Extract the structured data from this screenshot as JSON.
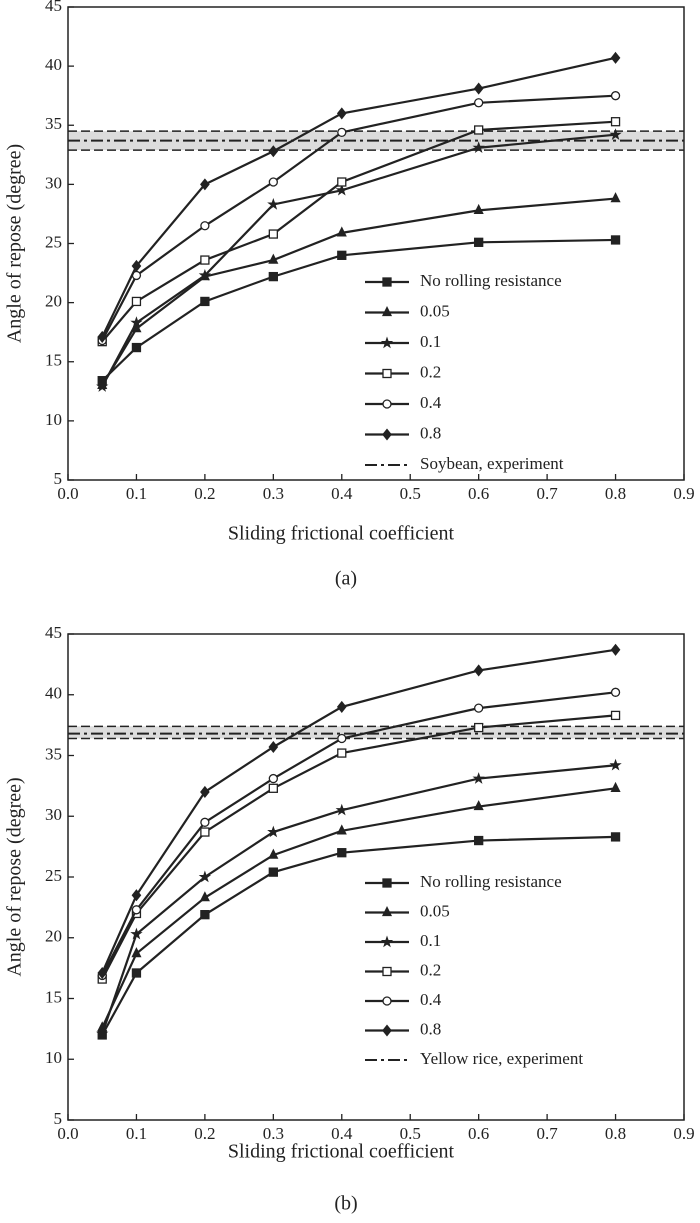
{
  "chart_data": [
    {
      "type": "line",
      "caption": "(a)",
      "xlabel": "Sliding frictional coefficient",
      "ylabel": "Angle of repose (degree)",
      "x": [
        0.05,
        0.1,
        0.2,
        0.3,
        0.4,
        0.6,
        0.8
      ],
      "xlim": [
        0,
        0.9
      ],
      "ylim": [
        5,
        45
      ],
      "xticks": [
        {
          "value": 0,
          "label": "0.0"
        },
        0.1,
        0.2,
        0.3,
        0.4,
        0.5,
        0.6,
        0.7,
        0.8,
        0.9
      ],
      "yticks": [
        5,
        10,
        15,
        20,
        25,
        30,
        35,
        40,
        45
      ],
      "series": [
        {
          "name": "No rolling resistance",
          "color": "#222222",
          "marker": "square",
          "values": [
            13.4,
            16.2,
            20.1,
            22.2,
            24.0,
            25.1,
            25.3
          ]
        },
        {
          "name": "0.05",
          "color": "#222222",
          "marker": "triangle",
          "values": [
            13.0,
            17.8,
            22.2,
            23.6,
            25.9,
            27.8,
            28.8
          ]
        },
        {
          "name": "0.1",
          "color": "#222222",
          "marker": "star",
          "values": [
            12.9,
            18.3,
            22.3,
            28.3,
            29.5,
            33.1,
            34.2
          ]
        },
        {
          "name": "0.2",
          "color": "#222222",
          "marker": "open-square",
          "values": [
            16.7,
            20.1,
            23.6,
            25.8,
            30.2,
            34.6,
            35.3
          ]
        },
        {
          "name": "0.4",
          "color": "#222222",
          "marker": "open-circle",
          "values": [
            16.8,
            22.3,
            26.5,
            30.2,
            34.4,
            36.9,
            37.5
          ]
        },
        {
          "name": "0.8",
          "color": "#222222",
          "marker": "diamond",
          "values": [
            17.1,
            23.1,
            30.0,
            32.8,
            36.0,
            38.1,
            40.7
          ]
        }
      ],
      "reference": {
        "name": "Soybean, experiment",
        "value": 33.7,
        "band": [
          32.9,
          34.5
        ]
      }
    },
    {
      "type": "line",
      "caption": "(b)",
      "xlabel": "Sliding frictional coefficient",
      "ylabel": "Angle of repose (degree)",
      "x": [
        0.05,
        0.1,
        0.2,
        0.3,
        0.4,
        0.6,
        0.8
      ],
      "xlim": [
        0,
        0.9
      ],
      "ylim": [
        5,
        45
      ],
      "xticks": [
        {
          "value": 0,
          "label": "0.0"
        },
        0.1,
        0.2,
        0.3,
        0.4,
        0.5,
        0.6,
        0.7,
        0.8,
        0.9
      ],
      "yticks": [
        5,
        10,
        15,
        20,
        25,
        30,
        35,
        40,
        45
      ],
      "series": [
        {
          "name": "No rolling resistance",
          "color": "#222222",
          "marker": "square",
          "values": [
            12.0,
            17.1,
            21.9,
            25.4,
            27.0,
            28.0,
            28.3
          ]
        },
        {
          "name": "0.05",
          "color": "#222222",
          "marker": "triangle",
          "values": [
            12.6,
            18.7,
            23.3,
            26.8,
            28.8,
            30.8,
            32.3
          ]
        },
        {
          "name": "0.1",
          "color": "#222222",
          "marker": "star",
          "values": [
            12.1,
            20.3,
            25.0,
            28.7,
            30.5,
            33.1,
            34.2
          ]
        },
        {
          "name": "0.2",
          "color": "#222222",
          "marker": "open-square",
          "values": [
            16.6,
            22.0,
            28.7,
            32.3,
            35.2,
            37.3,
            38.3
          ]
        },
        {
          "name": "0.4",
          "color": "#222222",
          "marker": "open-circle",
          "values": [
            16.9,
            22.3,
            29.5,
            33.1,
            36.4,
            38.9,
            40.2
          ]
        },
        {
          "name": "0.8",
          "color": "#222222",
          "marker": "diamond",
          "values": [
            17.1,
            23.5,
            32.0,
            35.7,
            39.0,
            42.0,
            43.7
          ]
        }
      ],
      "reference": {
        "name": "Yellow rice, experiment",
        "value": 36.8,
        "band": [
          36.4,
          37.4
        ]
      }
    }
  ]
}
